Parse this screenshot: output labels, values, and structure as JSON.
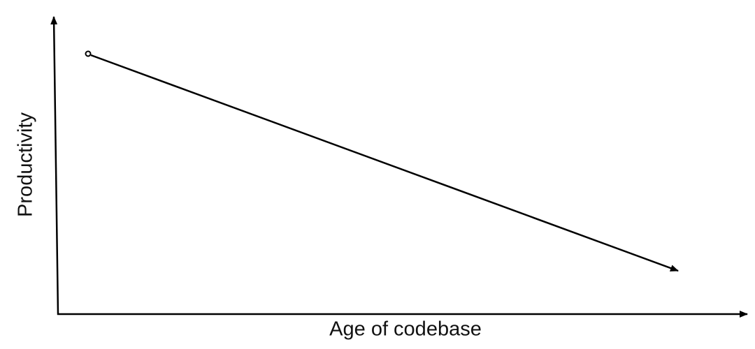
{
  "diagram": {
    "y_axis_label": "Productivity",
    "x_axis_label": "Age of codebase"
  }
}
